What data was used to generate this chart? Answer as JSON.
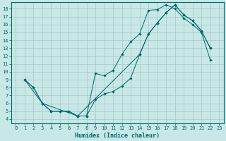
{
  "xlabel": "Humidex (Indice chaleur)",
  "bg_color": "#c8e8e8",
  "grid_color": "#a8c8c8",
  "line_color": "#006868",
  "xlim": [
    -0.5,
    23.5
  ],
  "ylim": [
    3.5,
    18.8
  ],
  "xticks": [
    0,
    1,
    2,
    3,
    4,
    5,
    6,
    7,
    8,
    9,
    10,
    11,
    12,
    13,
    14,
    15,
    16,
    17,
    18,
    19,
    20,
    21,
    22,
    23
  ],
  "yticks": [
    4,
    5,
    6,
    7,
    8,
    9,
    10,
    11,
    12,
    13,
    14,
    15,
    16,
    17,
    18
  ],
  "line1_x": [
    1,
    2,
    3,
    4,
    5,
    6,
    7,
    8,
    9,
    10,
    11,
    12,
    13,
    14,
    15,
    16,
    17,
    18,
    19,
    20,
    21,
    22
  ],
  "line1_y": [
    9,
    8,
    6,
    5,
    5,
    5,
    4.4,
    4.4,
    9.8,
    9.5,
    10.2,
    12.2,
    13.8,
    14.8,
    17.8,
    17.9,
    18.5,
    18.0,
    16.8,
    16.0,
    15.0,
    11.5
  ],
  "line2_x": [
    1,
    2,
    3,
    4,
    5,
    6,
    7,
    8,
    9,
    10,
    11,
    12,
    13,
    14,
    15,
    16,
    17,
    18,
    19,
    20,
    21,
    22
  ],
  "line2_y": [
    9,
    8,
    6,
    5,
    5,
    5,
    4.4,
    4.4,
    6.5,
    7.2,
    7.5,
    8.2,
    9.2,
    12.2,
    14.8,
    16.2,
    17.5,
    18.5,
    17.2,
    16.5,
    15.2,
    13.0
  ],
  "line3_x": [
    1,
    3,
    7,
    14,
    15,
    16,
    17,
    18,
    19,
    20,
    21,
    22
  ],
  "line3_y": [
    9.0,
    6.0,
    4.4,
    12.2,
    14.8,
    16.2,
    17.5,
    18.5,
    17.2,
    16.5,
    15.2,
    13.0
  ],
  "xlabel_fontsize": 6,
  "tick_fontsize": 5
}
